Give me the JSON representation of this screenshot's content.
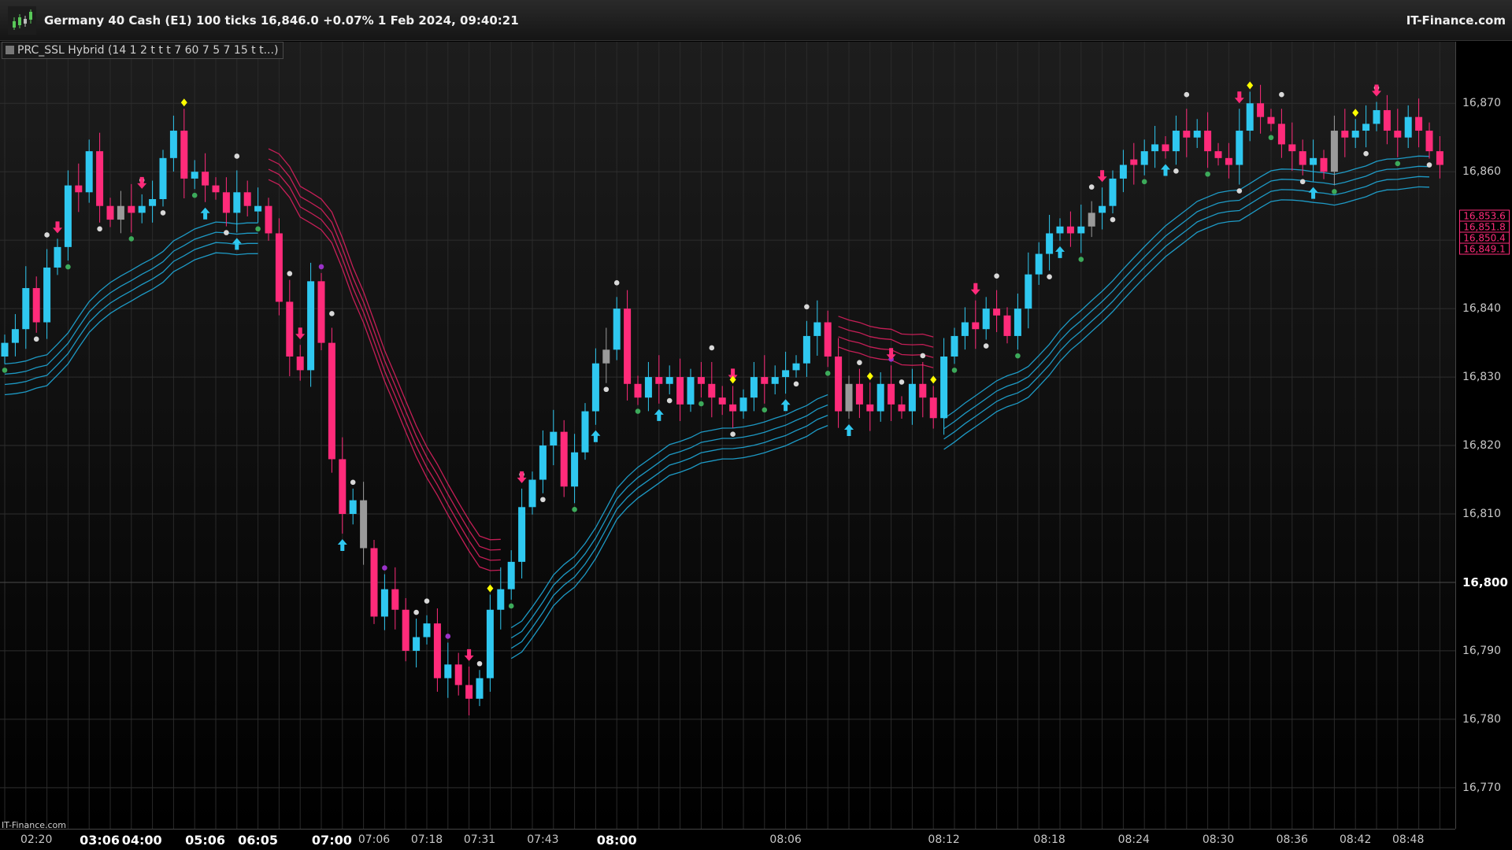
{
  "header": {
    "title": "Germany 40 Cash (E1) 100 ticks 16,846.0 +0.07% 1 Feb 2024, 09:40:21",
    "brand": "IT-Finance.com",
    "indicator": "PRC_SSL Hybrid (14 1 2 t t t 7 60 7 5 7 15 t t...)",
    "watermark": "IT-Finance.com"
  },
  "colors": {
    "bull": "#2fc8f0",
    "bear": "#ff2b7a",
    "neutral": "#9a9a9a",
    "band_up": "#1fa8d8",
    "band_down": "#d8205e",
    "dot_white": "#d8d8d8",
    "dot_purple": "#9a32c8",
    "dot_green": "#3caa5a",
    "diamond": "#ffff00"
  },
  "chart_data": {
    "type": "candlestick",
    "ylim": [
      16764,
      16879
    ],
    "y_ticks": [
      {
        "value": 16770,
        "label": "16,770",
        "major": false
      },
      {
        "value": 16780,
        "label": "16,780",
        "major": false
      },
      {
        "value": 16790,
        "label": "16,790",
        "major": false
      },
      {
        "value": 16800,
        "label": "16,800",
        "major": true
      },
      {
        "value": 16810,
        "label": "16,810",
        "major": false
      },
      {
        "value": 16820,
        "label": "16,820",
        "major": false
      },
      {
        "value": 16830,
        "label": "16,830",
        "major": false
      },
      {
        "value": 16840,
        "label": "16,840",
        "major": false
      },
      {
        "value": 16850,
        "label": "16,850",
        "major": false
      },
      {
        "value": 16860,
        "label": "16,860",
        "major": false
      },
      {
        "value": 16870,
        "label": "16,870",
        "major": false
      }
    ],
    "price_labels": [
      {
        "value": 16853.6,
        "label": "16,853.6"
      },
      {
        "value": 16851.8,
        "label": "16,851.8"
      },
      {
        "value": 16850.4,
        "label": "16,850.4"
      },
      {
        "value": 16849.1,
        "label": "16,849.1"
      }
    ],
    "x_labels": [
      {
        "index": 3,
        "label": "02:20",
        "major": false
      },
      {
        "index": 9,
        "label": "03:06",
        "major": true
      },
      {
        "index": 13,
        "label": "04:00",
        "major": true
      },
      {
        "index": 19,
        "label": "05:06",
        "major": true
      },
      {
        "index": 24,
        "label": "06:05",
        "major": true
      },
      {
        "index": 31,
        "label": "07:00",
        "major": true
      },
      {
        "index": 35,
        "label": "07:06",
        "major": false
      },
      {
        "index": 40,
        "label": "07:18",
        "major": false
      },
      {
        "index": 45,
        "label": "07:31",
        "major": false
      },
      {
        "index": 51,
        "label": "07:43",
        "major": false
      },
      {
        "index": 58,
        "label": "08:00",
        "major": true
      },
      {
        "index": 74,
        "label": "08:06",
        "major": false
      },
      {
        "index": 89,
        "label": "08:12",
        "major": false
      },
      {
        "index": 99,
        "label": "08:18",
        "major": false
      },
      {
        "index": 107,
        "label": "08:24",
        "major": false
      },
      {
        "index": 115,
        "label": "08:30",
        "major": false
      },
      {
        "index": 122,
        "label": "08:36",
        "major": false
      },
      {
        "index": 128,
        "label": "08:42",
        "major": false
      },
      {
        "index": 133,
        "label": "08:48",
        "major": false
      }
    ],
    "closes": [
      16835,
      16837,
      16843,
      16838,
      16846,
      16849,
      16858,
      16857,
      16863,
      16855,
      16853,
      16855,
      16854,
      16855,
      16856,
      16862,
      16866,
      16859,
      16860,
      16858,
      16857,
      16854,
      16857,
      16855,
      16855,
      16851,
      16841,
      16833,
      16831,
      16844,
      16835,
      16818,
      16810,
      16812,
      16805,
      16795,
      16799,
      16796,
      16790,
      16792,
      16794,
      16786,
      16788,
      16785,
      16783,
      16786,
      16796,
      16799,
      16803,
      16811,
      16815,
      16820,
      16822,
      16814,
      16819,
      16825,
      16832,
      16834,
      16840,
      16829,
      16827,
      16830,
      16829,
      16830,
      16826,
      16830,
      16829,
      16827,
      16826,
      16825,
      16827,
      16830,
      16829,
      16830,
      16831,
      16832,
      16836,
      16838,
      16833,
      16825,
      16829,
      16826,
      16825,
      16829,
      16826,
      16825,
      16829,
      16827,
      16824,
      16833,
      16836,
      16838,
      16837,
      16840,
      16839,
      16836,
      16840,
      16845,
      16848,
      16851,
      16852,
      16851,
      16852,
      16854,
      16855,
      16859,
      16861,
      16861,
      16863,
      16864,
      16863,
      16866,
      16865,
      16866,
      16863,
      16862,
      16861,
      16866,
      16870,
      16868,
      16867,
      16864,
      16863,
      16861,
      16862,
      16860,
      16866,
      16865,
      16866,
      16867,
      16869,
      16866,
      16865,
      16868,
      16866,
      16863,
      16861
    ]
  }
}
